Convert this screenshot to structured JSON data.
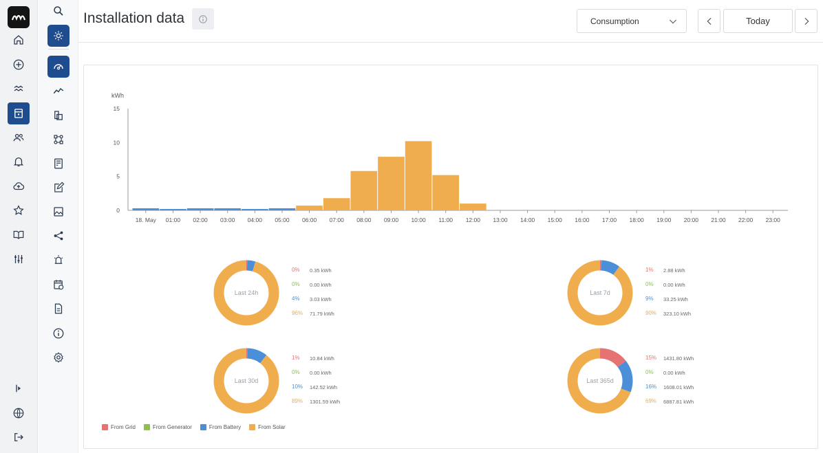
{
  "rail": {
    "logo_text": "~",
    "items": [
      {
        "name": "home-icon"
      },
      {
        "name": "add-circle-icon"
      },
      {
        "name": "waves-icon"
      },
      {
        "name": "installation-icon",
        "active": true
      },
      {
        "name": "users-icon"
      },
      {
        "name": "bell-icon"
      },
      {
        "name": "cloud-upload-icon"
      },
      {
        "name": "star-icon"
      },
      {
        "name": "book-icon"
      },
      {
        "name": "sliders-icon"
      }
    ],
    "bottom": [
      {
        "name": "expand-icon"
      },
      {
        "name": "globe-icon"
      },
      {
        "name": "logout-icon"
      }
    ]
  },
  "subnav": {
    "items": [
      {
        "name": "search-icon"
      },
      {
        "name": "sun-icon",
        "active": true
      },
      {
        "name": "dashboard-gauge-icon",
        "active": true
      },
      {
        "name": "trend-line-icon"
      },
      {
        "name": "device-list-icon"
      },
      {
        "name": "network-icon"
      },
      {
        "name": "panel-icon"
      },
      {
        "name": "edit-icon"
      },
      {
        "name": "image-icon"
      },
      {
        "name": "share-icon"
      },
      {
        "name": "alarm-icon"
      },
      {
        "name": "calendar-icon"
      },
      {
        "name": "document-icon"
      },
      {
        "name": "info-icon"
      },
      {
        "name": "settings-icon"
      }
    ]
  },
  "header": {
    "title": "Installation data",
    "info_icon": "info-icon",
    "select_value": "Consumption",
    "today_label": "Today",
    "prev_icon": "chevron-left-icon",
    "next_icon": "chevron-right-icon"
  },
  "colors": {
    "grid": "#e57373",
    "generator": "#8bc34a",
    "battery": "#4a8fd8",
    "solar": "#f0ad4e"
  },
  "chart_data": [
    {
      "type": "bar",
      "ylabel": "kWh",
      "ylim": [
        0,
        15
      ],
      "yticks": [
        "0",
        "5",
        "10",
        "15"
      ],
      "categories": [
        "18. May",
        "01:00",
        "02:00",
        "03:00",
        "04:00",
        "05:00",
        "06:00",
        "07:00",
        "08:00",
        "09:00",
        "10:00",
        "11:00",
        "12:00",
        "13:00",
        "14:00",
        "15:00",
        "16:00",
        "17:00",
        "18:00",
        "19:00",
        "20:00",
        "21:00",
        "22:00",
        "23:00"
      ],
      "series": [
        {
          "name": "From Battery",
          "color": "#4a8fd8",
          "values": [
            0.3,
            0.2,
            0.3,
            0.3,
            0.2,
            0.3,
            0,
            0,
            0,
            0,
            0,
            0,
            0,
            0,
            0,
            0,
            0,
            0,
            0,
            0,
            0,
            0,
            0,
            0
          ]
        },
        {
          "name": "From Solar",
          "color": "#f0ad4e",
          "values": [
            0,
            0,
            0,
            0,
            0,
            0,
            0.7,
            1.8,
            5.8,
            7.9,
            10.2,
            5.2,
            1.0,
            0,
            0,
            0,
            0,
            0,
            0,
            0,
            0,
            0,
            0,
            0
          ]
        }
      ],
      "legend_position": "bottom-left"
    },
    {
      "type": "pie",
      "charts": [
        {
          "label": "Last 24h",
          "rows": [
            {
              "pct": "0%",
              "kwh": "0.35 kWh",
              "key": "grid",
              "value": 0.35
            },
            {
              "pct": "0%",
              "kwh": "0.00 kWh",
              "key": "generator",
              "value": 0
            },
            {
              "pct": "4%",
              "kwh": "3.03 kWh",
              "key": "battery",
              "value": 3.03
            },
            {
              "pct": "96%",
              "kwh": "71.79 kWh",
              "key": "solar",
              "value": 71.79
            }
          ]
        },
        {
          "label": "Last 7d",
          "rows": [
            {
              "pct": "1%",
              "kwh": "2.88 kWh",
              "key": "grid",
              "value": 2.88
            },
            {
              "pct": "0%",
              "kwh": "0.00 kWh",
              "key": "generator",
              "value": 0
            },
            {
              "pct": "9%",
              "kwh": "33.25 kWh",
              "key": "battery",
              "value": 33.25
            },
            {
              "pct": "90%",
              "kwh": "323.10 kWh",
              "key": "solar",
              "value": 323.1
            }
          ]
        },
        {
          "label": "Last 30d",
          "rows": [
            {
              "pct": "1%",
              "kwh": "10.84 kWh",
              "key": "grid",
              "value": 10.84
            },
            {
              "pct": "0%",
              "kwh": "0.00 kWh",
              "key": "generator",
              "value": 0
            },
            {
              "pct": "10%",
              "kwh": "142.52 kWh",
              "key": "battery",
              "value": 142.52
            },
            {
              "pct": "89%",
              "kwh": "1301.59 kWh",
              "key": "solar",
              "value": 1301.59
            }
          ]
        },
        {
          "label": "Last 365d",
          "rows": [
            {
              "pct": "15%",
              "kwh": "1431.80 kWh",
              "key": "grid",
              "value": 1431.8
            },
            {
              "pct": "0%",
              "kwh": "0.00 kWh",
              "key": "generator",
              "value": 0
            },
            {
              "pct": "16%",
              "kwh": "1608.01 kWh",
              "key": "battery",
              "value": 1608.01
            },
            {
              "pct": "69%",
              "kwh": "6887.81 kWh",
              "key": "solar",
              "value": 6887.81
            }
          ]
        }
      ]
    }
  ],
  "legend": [
    {
      "label": "From Grid",
      "key": "grid"
    },
    {
      "label": "From Generator",
      "key": "generator"
    },
    {
      "label": "From Battery",
      "key": "battery"
    },
    {
      "label": "From Solar",
      "key": "solar"
    }
  ]
}
